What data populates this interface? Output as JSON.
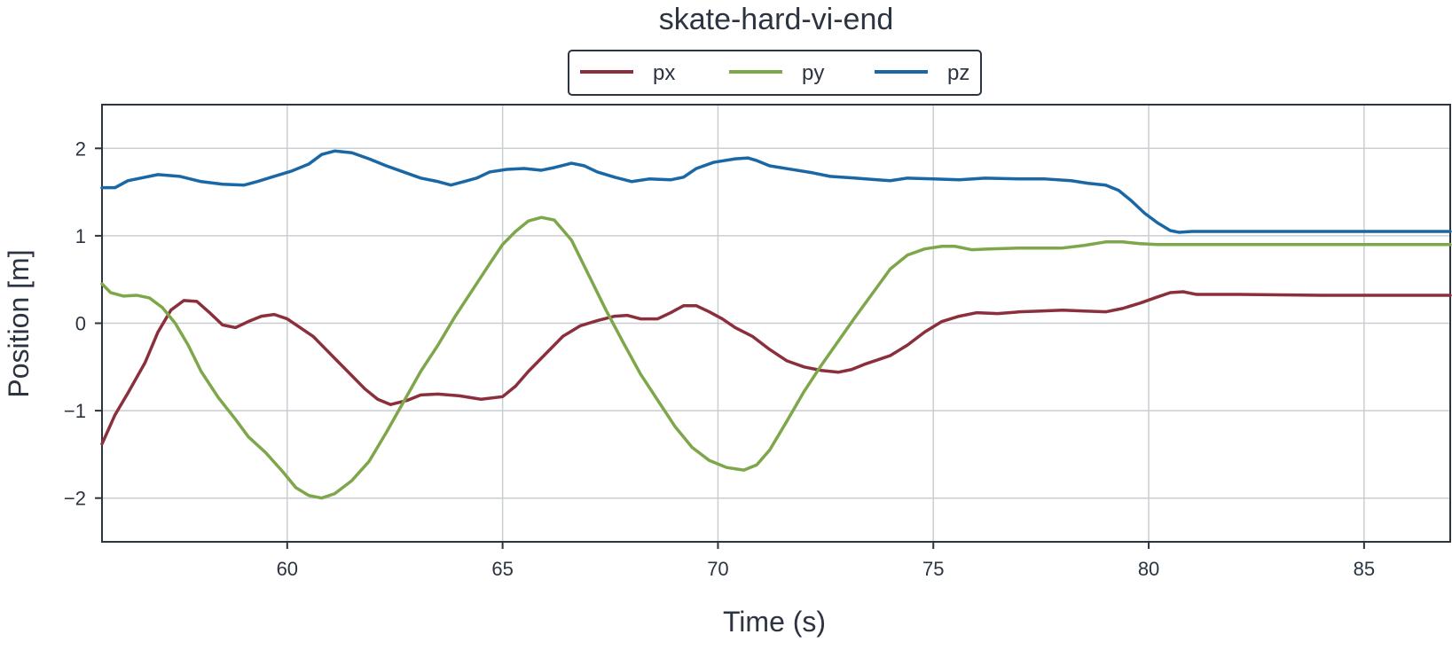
{
  "chart_data": {
    "type": "line",
    "title": "skate-hard-vi-end",
    "xlabel": "Time (s)",
    "ylabel": "Position [m]",
    "xlim": [
      55.7,
      87.0
    ],
    "ylim": [
      -2.5,
      2.5
    ],
    "xticks": [
      60,
      65,
      70,
      75,
      80,
      85
    ],
    "yticks": [
      2,
      1,
      0,
      -1,
      -2
    ],
    "ytick_labels": [
      "2",
      "1",
      "0",
      "−1",
      "−2"
    ],
    "grid": true,
    "legend_position": "top-center",
    "series": [
      {
        "name": "px",
        "color": "#8b2f3c",
        "points": [
          [
            55.7,
            -1.38
          ],
          [
            56.0,
            -1.05
          ],
          [
            56.3,
            -0.8
          ],
          [
            56.7,
            -0.45
          ],
          [
            57.0,
            -0.1
          ],
          [
            57.3,
            0.15
          ],
          [
            57.6,
            0.26
          ],
          [
            57.9,
            0.25
          ],
          [
            58.2,
            0.12
          ],
          [
            58.5,
            -0.02
          ],
          [
            58.8,
            -0.05
          ],
          [
            59.1,
            0.02
          ],
          [
            59.4,
            0.08
          ],
          [
            59.7,
            0.1
          ],
          [
            60.0,
            0.05
          ],
          [
            60.3,
            -0.05
          ],
          [
            60.6,
            -0.15
          ],
          [
            60.9,
            -0.3
          ],
          [
            61.2,
            -0.45
          ],
          [
            61.5,
            -0.6
          ],
          [
            61.8,
            -0.75
          ],
          [
            62.1,
            -0.87
          ],
          [
            62.4,
            -0.93
          ],
          [
            62.8,
            -0.88
          ],
          [
            63.1,
            -0.82
          ],
          [
            63.5,
            -0.81
          ],
          [
            64.0,
            -0.83
          ],
          [
            64.5,
            -0.87
          ],
          [
            65.0,
            -0.84
          ],
          [
            65.3,
            -0.72
          ],
          [
            65.6,
            -0.55
          ],
          [
            66.0,
            -0.35
          ],
          [
            66.4,
            -0.15
          ],
          [
            66.8,
            -0.03
          ],
          [
            67.2,
            0.03
          ],
          [
            67.6,
            0.08
          ],
          [
            67.9,
            0.09
          ],
          [
            68.2,
            0.05
          ],
          [
            68.6,
            0.05
          ],
          [
            68.9,
            0.12
          ],
          [
            69.2,
            0.2
          ],
          [
            69.5,
            0.2
          ],
          [
            69.8,
            0.13
          ],
          [
            70.1,
            0.05
          ],
          [
            70.4,
            -0.05
          ],
          [
            70.8,
            -0.15
          ],
          [
            71.2,
            -0.3
          ],
          [
            71.6,
            -0.43
          ],
          [
            72.0,
            -0.5
          ],
          [
            72.4,
            -0.54
          ],
          [
            72.8,
            -0.56
          ],
          [
            73.1,
            -0.53
          ],
          [
            73.4,
            -0.47
          ],
          [
            73.7,
            -0.42
          ],
          [
            74.0,
            -0.37
          ],
          [
            74.4,
            -0.25
          ],
          [
            74.8,
            -0.1
          ],
          [
            75.2,
            0.02
          ],
          [
            75.6,
            0.08
          ],
          [
            76.0,
            0.12
          ],
          [
            76.5,
            0.11
          ],
          [
            77.0,
            0.13
          ],
          [
            77.5,
            0.14
          ],
          [
            78.0,
            0.15
          ],
          [
            78.5,
            0.14
          ],
          [
            79.0,
            0.13
          ],
          [
            79.4,
            0.17
          ],
          [
            79.8,
            0.23
          ],
          [
            80.2,
            0.3
          ],
          [
            80.5,
            0.35
          ],
          [
            80.8,
            0.36
          ],
          [
            81.1,
            0.33
          ],
          [
            82.0,
            0.33
          ],
          [
            84.0,
            0.32
          ],
          [
            87.0,
            0.32
          ]
        ]
      },
      {
        "name": "py",
        "color": "#7ea64a",
        "points": [
          [
            55.7,
            0.45
          ],
          [
            55.9,
            0.35
          ],
          [
            56.2,
            0.31
          ],
          [
            56.5,
            0.32
          ],
          [
            56.8,
            0.29
          ],
          [
            57.1,
            0.18
          ],
          [
            57.4,
            0.0
          ],
          [
            57.7,
            -0.25
          ],
          [
            58.0,
            -0.55
          ],
          [
            58.4,
            -0.85
          ],
          [
            58.8,
            -1.1
          ],
          [
            59.1,
            -1.3
          ],
          [
            59.5,
            -1.48
          ],
          [
            59.9,
            -1.7
          ],
          [
            60.2,
            -1.88
          ],
          [
            60.5,
            -1.97
          ],
          [
            60.8,
            -2.0
          ],
          [
            61.1,
            -1.95
          ],
          [
            61.5,
            -1.8
          ],
          [
            61.9,
            -1.58
          ],
          [
            62.3,
            -1.25
          ],
          [
            62.7,
            -0.9
          ],
          [
            63.1,
            -0.55
          ],
          [
            63.5,
            -0.25
          ],
          [
            63.9,
            0.08
          ],
          [
            64.3,
            0.38
          ],
          [
            64.7,
            0.68
          ],
          [
            65.0,
            0.9
          ],
          [
            65.3,
            1.05
          ],
          [
            65.6,
            1.17
          ],
          [
            65.9,
            1.21
          ],
          [
            66.2,
            1.18
          ],
          [
            66.6,
            0.95
          ],
          [
            67.0,
            0.55
          ],
          [
            67.4,
            0.15
          ],
          [
            67.8,
            -0.22
          ],
          [
            68.2,
            -0.58
          ],
          [
            68.6,
            -0.88
          ],
          [
            69.0,
            -1.18
          ],
          [
            69.4,
            -1.42
          ],
          [
            69.8,
            -1.57
          ],
          [
            70.2,
            -1.65
          ],
          [
            70.6,
            -1.68
          ],
          [
            70.9,
            -1.62
          ],
          [
            71.2,
            -1.45
          ],
          [
            71.6,
            -1.12
          ],
          [
            72.0,
            -0.78
          ],
          [
            72.4,
            -0.48
          ],
          [
            72.8,
            -0.2
          ],
          [
            73.2,
            0.08
          ],
          [
            73.6,
            0.35
          ],
          [
            74.0,
            0.62
          ],
          [
            74.4,
            0.78
          ],
          [
            74.8,
            0.85
          ],
          [
            75.2,
            0.88
          ],
          [
            75.5,
            0.88
          ],
          [
            75.9,
            0.84
          ],
          [
            76.3,
            0.85
          ],
          [
            77.0,
            0.86
          ],
          [
            78.0,
            0.86
          ],
          [
            78.5,
            0.89
          ],
          [
            79.0,
            0.93
          ],
          [
            79.4,
            0.93
          ],
          [
            79.8,
            0.91
          ],
          [
            80.2,
            0.9
          ],
          [
            81.0,
            0.9
          ],
          [
            83.0,
            0.9
          ],
          [
            87.0,
            0.9
          ]
        ]
      },
      {
        "name": "pz",
        "color": "#1a67a5",
        "points": [
          [
            55.7,
            1.55
          ],
          [
            56.0,
            1.55
          ],
          [
            56.3,
            1.63
          ],
          [
            56.6,
            1.66
          ],
          [
            57.0,
            1.7
          ],
          [
            57.5,
            1.68
          ],
          [
            58.0,
            1.62
          ],
          [
            58.5,
            1.59
          ],
          [
            59.0,
            1.58
          ],
          [
            59.3,
            1.62
          ],
          [
            59.7,
            1.68
          ],
          [
            60.1,
            1.74
          ],
          [
            60.5,
            1.82
          ],
          [
            60.8,
            1.93
          ],
          [
            61.1,
            1.97
          ],
          [
            61.5,
            1.95
          ],
          [
            61.9,
            1.88
          ],
          [
            62.3,
            1.8
          ],
          [
            62.7,
            1.73
          ],
          [
            63.1,
            1.66
          ],
          [
            63.5,
            1.62
          ],
          [
            63.8,
            1.58
          ],
          [
            64.1,
            1.62
          ],
          [
            64.4,
            1.66
          ],
          [
            64.7,
            1.73
          ],
          [
            65.1,
            1.76
          ],
          [
            65.5,
            1.77
          ],
          [
            65.9,
            1.75
          ],
          [
            66.2,
            1.78
          ],
          [
            66.6,
            1.83
          ],
          [
            66.9,
            1.8
          ],
          [
            67.2,
            1.73
          ],
          [
            67.6,
            1.67
          ],
          [
            68.0,
            1.62
          ],
          [
            68.4,
            1.65
          ],
          [
            68.9,
            1.64
          ],
          [
            69.2,
            1.67
          ],
          [
            69.5,
            1.77
          ],
          [
            69.9,
            1.84
          ],
          [
            70.4,
            1.88
          ],
          [
            70.7,
            1.89
          ],
          [
            70.9,
            1.86
          ],
          [
            71.2,
            1.8
          ],
          [
            71.7,
            1.76
          ],
          [
            72.2,
            1.72
          ],
          [
            72.6,
            1.68
          ],
          [
            73.2,
            1.66
          ],
          [
            73.7,
            1.64
          ],
          [
            74.0,
            1.63
          ],
          [
            74.4,
            1.66
          ],
          [
            75.0,
            1.65
          ],
          [
            75.6,
            1.64
          ],
          [
            76.2,
            1.66
          ],
          [
            77.0,
            1.65
          ],
          [
            77.6,
            1.65
          ],
          [
            78.2,
            1.63
          ],
          [
            78.6,
            1.6
          ],
          [
            79.0,
            1.58
          ],
          [
            79.3,
            1.52
          ],
          [
            79.6,
            1.4
          ],
          [
            79.9,
            1.26
          ],
          [
            80.2,
            1.15
          ],
          [
            80.5,
            1.06
          ],
          [
            80.7,
            1.04
          ],
          [
            81.0,
            1.05
          ],
          [
            82.0,
            1.05
          ],
          [
            84.0,
            1.05
          ],
          [
            87.0,
            1.05
          ]
        ]
      }
    ]
  }
}
